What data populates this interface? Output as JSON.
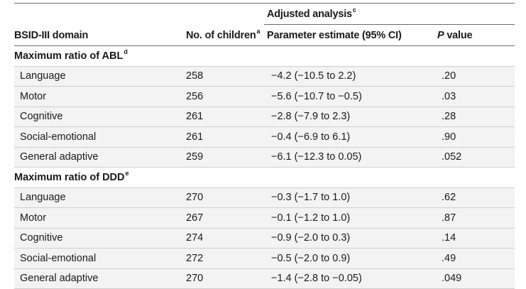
{
  "header": {
    "adjusted_analysis": "Adjusted analysis",
    "adjusted_sup": "c",
    "domain_col": "BSID-III domain",
    "children_col": "No. of children",
    "children_sup": "a",
    "estimate_col": "Parameter estimate (95% CI)",
    "p_col_italic": "P",
    "p_col_rest": " value"
  },
  "sections": [
    {
      "title": "Maximum ratio of ABL",
      "title_sup": "d",
      "rows": [
        {
          "domain": "Language",
          "children": "258",
          "estimate": "−4.2 (−10.5 to 2.2)",
          "p": ".20"
        },
        {
          "domain": "Motor",
          "children": "256",
          "estimate": "−5.6 (−10.7 to −0.5)",
          "p": ".03"
        },
        {
          "domain": "Cognitive",
          "children": "261",
          "estimate": "−2.8 (−7.9 to 2.3)",
          "p": ".28"
        },
        {
          "domain": "Social-emotional",
          "children": "261",
          "estimate": "−0.4 (−6.9 to 6.1)",
          "p": ".90"
        },
        {
          "domain": "General adaptive",
          "children": "259",
          "estimate": "−6.1 (−12.3 to 0.05)",
          "p": ".052"
        }
      ]
    },
    {
      "title": "Maximum ratio of DDD",
      "title_sup": "e",
      "rows": [
        {
          "domain": "Language",
          "children": "270",
          "estimate": "−0.3 (−1.7 to 1.0)",
          "p": ".62"
        },
        {
          "domain": "Motor",
          "children": "267",
          "estimate": "−0.1 (−1.2 to 1.0)",
          "p": ".87"
        },
        {
          "domain": "Cognitive",
          "children": "274",
          "estimate": "−0.9 (−2.0 to 0.3)",
          "p": ".14"
        },
        {
          "domain": "Social-emotional",
          "children": "272",
          "estimate": "−0.5 (−2.0 to 0.9)",
          "p": ".49"
        },
        {
          "domain": "General adaptive",
          "children": "270",
          "estimate": "−1.4 (−2.8 to −0.05)",
          "p": ".049"
        }
      ]
    }
  ]
}
